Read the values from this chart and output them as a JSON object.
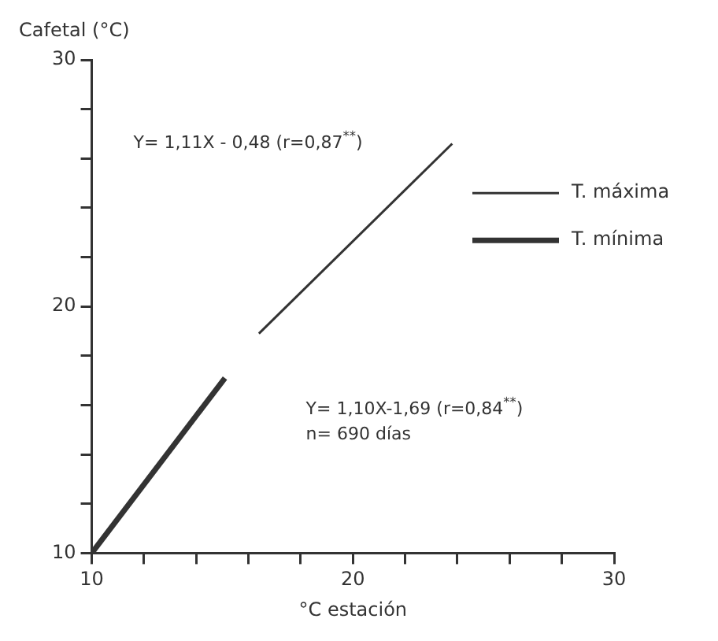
{
  "chart_data": {
    "type": "line",
    "xlabel": "°C estación",
    "ylabel": "Cafetal (°C)",
    "series": [
      {
        "name": "T. máxima",
        "color": "#333333",
        "x": [
          16.4,
          23.8
        ],
        "values": [
          18.9,
          26.6
        ]
      },
      {
        "name": "T. mínima",
        "color": "#333333",
        "x": [
          10,
          15.1
        ],
        "values": [
          10,
          17.1
        ]
      }
    ],
    "xlim": [
      10,
      30
    ],
    "ylim": [
      10,
      30
    ],
    "xticks": [
      10,
      {
        "value": 12,
        "label": null
      },
      {
        "value": 14,
        "label": null
      },
      {
        "value": 16,
        "label": null
      },
      {
        "value": 18,
        "label": null
      },
      20,
      {
        "value": 22,
        "label": null
      },
      {
        "value": 24,
        "label": null
      },
      {
        "value": 26,
        "label": null
      },
      {
        "value": 28,
        "label": null
      },
      30
    ],
    "yticks": [
      10,
      {
        "value": 12,
        "label": null
      },
      {
        "value": 14,
        "label": null
      },
      {
        "value": 16,
        "label": null
      },
      {
        "value": 18,
        "label": null
      },
      20,
      {
        "value": 22,
        "label": null
      },
      {
        "value": 24,
        "label": null
      },
      {
        "value": 26,
        "label": null
      },
      {
        "value": 28,
        "label": null
      },
      30
    ],
    "annotations": [
      "Y= 1,11X - 0,48 (r=0,87$^{**}$)",
      "Y= 1,10X-1,69 (r=0,84$^{**}$)\nn= 690 días"
    ],
    "legend": "top right",
    "marker": "none"
  }
}
